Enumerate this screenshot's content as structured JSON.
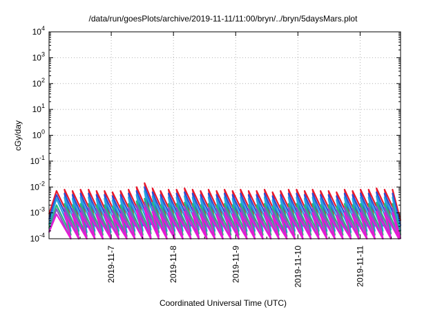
{
  "chart_data": {
    "type": "line",
    "title": "/data/run/goesPlots/archive/2019-11-11/11:00/bryn/../bryn/5daysMars.plot",
    "xlabel": "Coordinated Universal Time (UTC)",
    "ylabel": "cGy/day",
    "yscale": "log",
    "ylim_exp": [
      -4,
      4
    ],
    "y_tick_exponents": [
      -4,
      -3,
      -2,
      -1,
      0,
      1,
      2,
      3,
      4
    ],
    "xlim": [
      0.0,
      5.65
    ],
    "x_tick_labels": [
      "2019-11-7",
      "2019-11-8",
      "2019-11-9",
      "2019-11-10",
      "2019-11-11"
    ],
    "x_tick_values": [
      1.0,
      2.0,
      3.0,
      4.0,
      5.0
    ],
    "grid": true,
    "legend": "none",
    "sawtooth_period_days": 0.25,
    "series": [
      {
        "color": "#e8192c",
        "peaks_log10": [
          -2.15,
          -2.1,
          -2.15,
          -2.1,
          -2.1,
          -2.15,
          -2.15,
          -2.2,
          -2.15,
          -2.1,
          -2.0,
          -1.85,
          -2.05,
          -2.15,
          -2.1,
          -2.1,
          -2.05,
          -2.1,
          -2.15,
          -2.1,
          -2.15,
          -2.1,
          -2.15,
          -2.1,
          -2.15,
          -2.15,
          -2.1,
          -2.2,
          -2.15,
          -2.1,
          -2.1,
          -2.15,
          -2.1,
          -2.15,
          -2.15,
          -2.2,
          -2.1,
          -2.15,
          -2.1,
          -2.1,
          -2.05,
          -2.1,
          -2.1
        ],
        "troughs_log10": [
          -3.3,
          -3.3,
          -3.35,
          -3.3,
          -3.3,
          -3.35,
          -3.3,
          -3.35,
          -3.3,
          -3.3,
          -3.25,
          -3.2,
          -3.3,
          -3.3,
          -3.3,
          -3.3,
          -3.25,
          -3.3,
          -3.3,
          -3.3,
          -3.3,
          -3.3,
          -3.3,
          -3.3,
          -3.3,
          -3.3,
          -3.3,
          -3.35,
          -3.3,
          -3.3,
          -3.3,
          -3.3,
          -3.3,
          -3.3,
          -3.3,
          -3.35,
          -3.3,
          -3.3,
          -3.3,
          -3.3,
          -3.25,
          -3.3,
          -3.3
        ]
      },
      {
        "color": "#2b4fd6",
        "peaks_log10": [
          -2.3,
          -2.25,
          -2.3,
          -2.25,
          -2.25,
          -2.3,
          -2.3,
          -2.35,
          -2.3,
          -2.25,
          -2.15,
          -2.0,
          -2.2,
          -2.3,
          -2.25,
          -2.25,
          -2.2,
          -2.25,
          -2.3,
          -2.25,
          -2.3,
          -2.25,
          -2.3,
          -2.25,
          -2.3,
          -2.3,
          -2.25,
          -2.35,
          -2.3,
          -2.25,
          -2.25,
          -2.3,
          -2.25,
          -2.3,
          -2.3,
          -2.35,
          -2.25,
          -2.3,
          -2.25,
          -2.25,
          -2.2,
          -2.25,
          -2.25
        ],
        "troughs_log10": [
          -3.5,
          -3.5,
          -3.55,
          -3.5,
          -3.5,
          -3.55,
          -3.5,
          -3.55,
          -3.5,
          -3.5,
          -3.45,
          -3.4,
          -3.5,
          -3.5,
          -3.5,
          -3.5,
          -3.45,
          -3.5,
          -3.5,
          -3.5,
          -3.5,
          -3.5,
          -3.5,
          -3.5,
          -3.5,
          -3.5,
          -3.5,
          -3.55,
          -3.5,
          -3.5,
          -3.5,
          -3.5,
          -3.5,
          -3.5,
          -3.5,
          -3.55,
          -3.5,
          -3.5,
          -3.5,
          -3.5,
          -3.45,
          -3.5,
          -3.5
        ]
      },
      {
        "color": "#22a3e0",
        "peaks_log10": [
          -2.45,
          -2.4,
          -2.45,
          -2.4,
          -2.4,
          -2.45,
          -2.45,
          -2.5,
          -2.45,
          -2.4,
          -2.3,
          -2.15,
          -2.35,
          -2.45,
          -2.4,
          -2.4,
          -2.35,
          -2.4,
          -2.45,
          -2.4,
          -2.45,
          -2.4,
          -2.45,
          -2.4,
          -2.45,
          -2.45,
          -2.4,
          -2.5,
          -2.45,
          -2.4,
          -2.4,
          -2.45,
          -2.4,
          -2.45,
          -2.45,
          -2.5,
          -2.4,
          -2.45,
          -2.4,
          -2.4,
          -2.35,
          -2.4,
          -2.4
        ],
        "troughs_log10": [
          -3.7,
          -3.7,
          -3.75,
          -3.7,
          -3.7,
          -3.75,
          -3.7,
          -3.75,
          -3.7,
          -3.7,
          -3.65,
          -3.6,
          -3.7,
          -3.7,
          -3.7,
          -3.7,
          -3.65,
          -3.7,
          -3.7,
          -3.7,
          -3.7,
          -3.7,
          -3.7,
          -3.7,
          -3.7,
          -3.7,
          -3.7,
          -3.75,
          -3.7,
          -3.7,
          -3.7,
          -3.7,
          -3.7,
          -3.7,
          -3.7,
          -3.75,
          -3.7,
          -3.7,
          -3.7,
          -3.7,
          -3.65,
          -3.7,
          -3.7
        ]
      },
      {
        "color": "#2ab57a",
        "peaks_log10": [
          -2.7,
          -2.65,
          -2.7,
          -2.65,
          -2.65,
          -2.7,
          -2.7,
          -2.75,
          -2.7,
          -2.65,
          -2.55,
          -2.45,
          -2.6,
          -2.7,
          -2.65,
          -2.65,
          -2.6,
          -2.65,
          -2.7,
          -2.65,
          -2.7,
          -2.65,
          -2.7,
          -2.65,
          -2.7,
          -2.7,
          -2.65,
          -2.75,
          -2.7,
          -2.65,
          -2.65,
          -2.7,
          -2.65,
          -2.7,
          -2.7,
          -2.75,
          -2.65,
          -2.7,
          -2.65,
          -2.65,
          -2.6,
          -2.65,
          -2.65
        ],
        "troughs_log10": [
          -3.85,
          -3.85,
          -3.9,
          -3.85,
          -3.85,
          -3.9,
          -3.85,
          -3.9,
          -3.85,
          -3.85,
          -3.8,
          -3.75,
          -3.85,
          -3.85,
          -3.85,
          -3.85,
          -3.8,
          -3.85,
          -3.85,
          -3.85,
          -3.85,
          -3.85,
          -3.85,
          -3.85,
          -3.85,
          -3.85,
          -3.85,
          -3.9,
          -3.85,
          -3.85,
          -3.85,
          -3.85,
          -3.85,
          -3.85,
          -3.85,
          -3.9,
          -3.85,
          -3.85,
          -3.85,
          -3.85,
          -3.8,
          -3.85,
          -3.85
        ]
      },
      {
        "color": "#8a52c9",
        "peaks_log10": [
          -2.85,
          -2.8,
          -2.85,
          -2.8,
          -2.8,
          -2.85,
          -2.85,
          -2.9,
          -2.85,
          -2.8,
          -2.7,
          -2.6,
          -2.75,
          -2.85,
          -2.8,
          -2.8,
          -2.75,
          -2.8,
          -2.85,
          -2.8,
          -2.85,
          -2.8,
          -2.85,
          -2.8,
          -2.85,
          -2.85,
          -2.8,
          -2.9,
          -2.85,
          -2.8,
          -2.8,
          -2.85,
          -2.8,
          -2.85,
          -2.85,
          -2.9,
          -2.8,
          -2.85,
          -2.8,
          -2.8,
          -2.75,
          -2.8,
          -2.8
        ],
        "troughs_log10": [
          -4.0,
          -4.0,
          -4.0,
          -4.0,
          -4.0,
          -4.0,
          -4.0,
          -4.0,
          -4.0,
          -4.0,
          -3.95,
          -3.9,
          -4.0,
          -4.0,
          -4.0,
          -4.0,
          -3.95,
          -4.0,
          -4.0,
          -4.0,
          -4.0,
          -4.0,
          -4.0,
          -4.0,
          -4.0,
          -4.0,
          -4.0,
          -4.0,
          -4.0,
          -4.0,
          -4.0,
          -4.0,
          -4.0,
          -4.0,
          -4.0,
          -4.0,
          -4.0,
          -4.0,
          -4.0,
          -4.0,
          -3.95,
          -4.0,
          -4.0
        ]
      },
      {
        "color": "#e81ad4",
        "peaks_log10": [
          -3.05,
          -3.0,
          -3.05,
          -3.0,
          -3.0,
          -3.05,
          -3.05,
          -3.1,
          -3.05,
          -3.0,
          -2.9,
          -2.8,
          -2.95,
          -3.05,
          -3.0,
          -3.0,
          -2.95,
          -3.0,
          -3.05,
          -3.0,
          -3.05,
          -3.0,
          -3.05,
          -3.0,
          -3.05,
          -3.05,
          -3.0,
          -3.1,
          -3.05,
          -3.0,
          -3.0,
          -3.05,
          -3.0,
          -3.05,
          -3.05,
          -3.1,
          -3.0,
          -3.05,
          -3.0,
          -3.0,
          -2.95,
          -3.0,
          -3.0
        ],
        "troughs_log10": [
          -4.0,
          -4.0,
          -4.0,
          -4.0,
          -4.0,
          -4.0,
          -4.0,
          -4.0,
          -4.0,
          -4.0,
          -4.0,
          -4.0,
          -4.0,
          -4.0,
          -4.0,
          -4.0,
          -4.0,
          -4.0,
          -4.0,
          -4.0,
          -4.0,
          -4.0,
          -4.0,
          -4.0,
          -4.0,
          -4.0,
          -4.0,
          -4.0,
          -4.0,
          -4.0,
          -4.0,
          -4.0,
          -4.0,
          -4.0,
          -4.0,
          -4.0,
          -4.0,
          -4.0,
          -4.0,
          -4.0,
          -4.0,
          -4.0,
          -4.0
        ]
      }
    ]
  }
}
